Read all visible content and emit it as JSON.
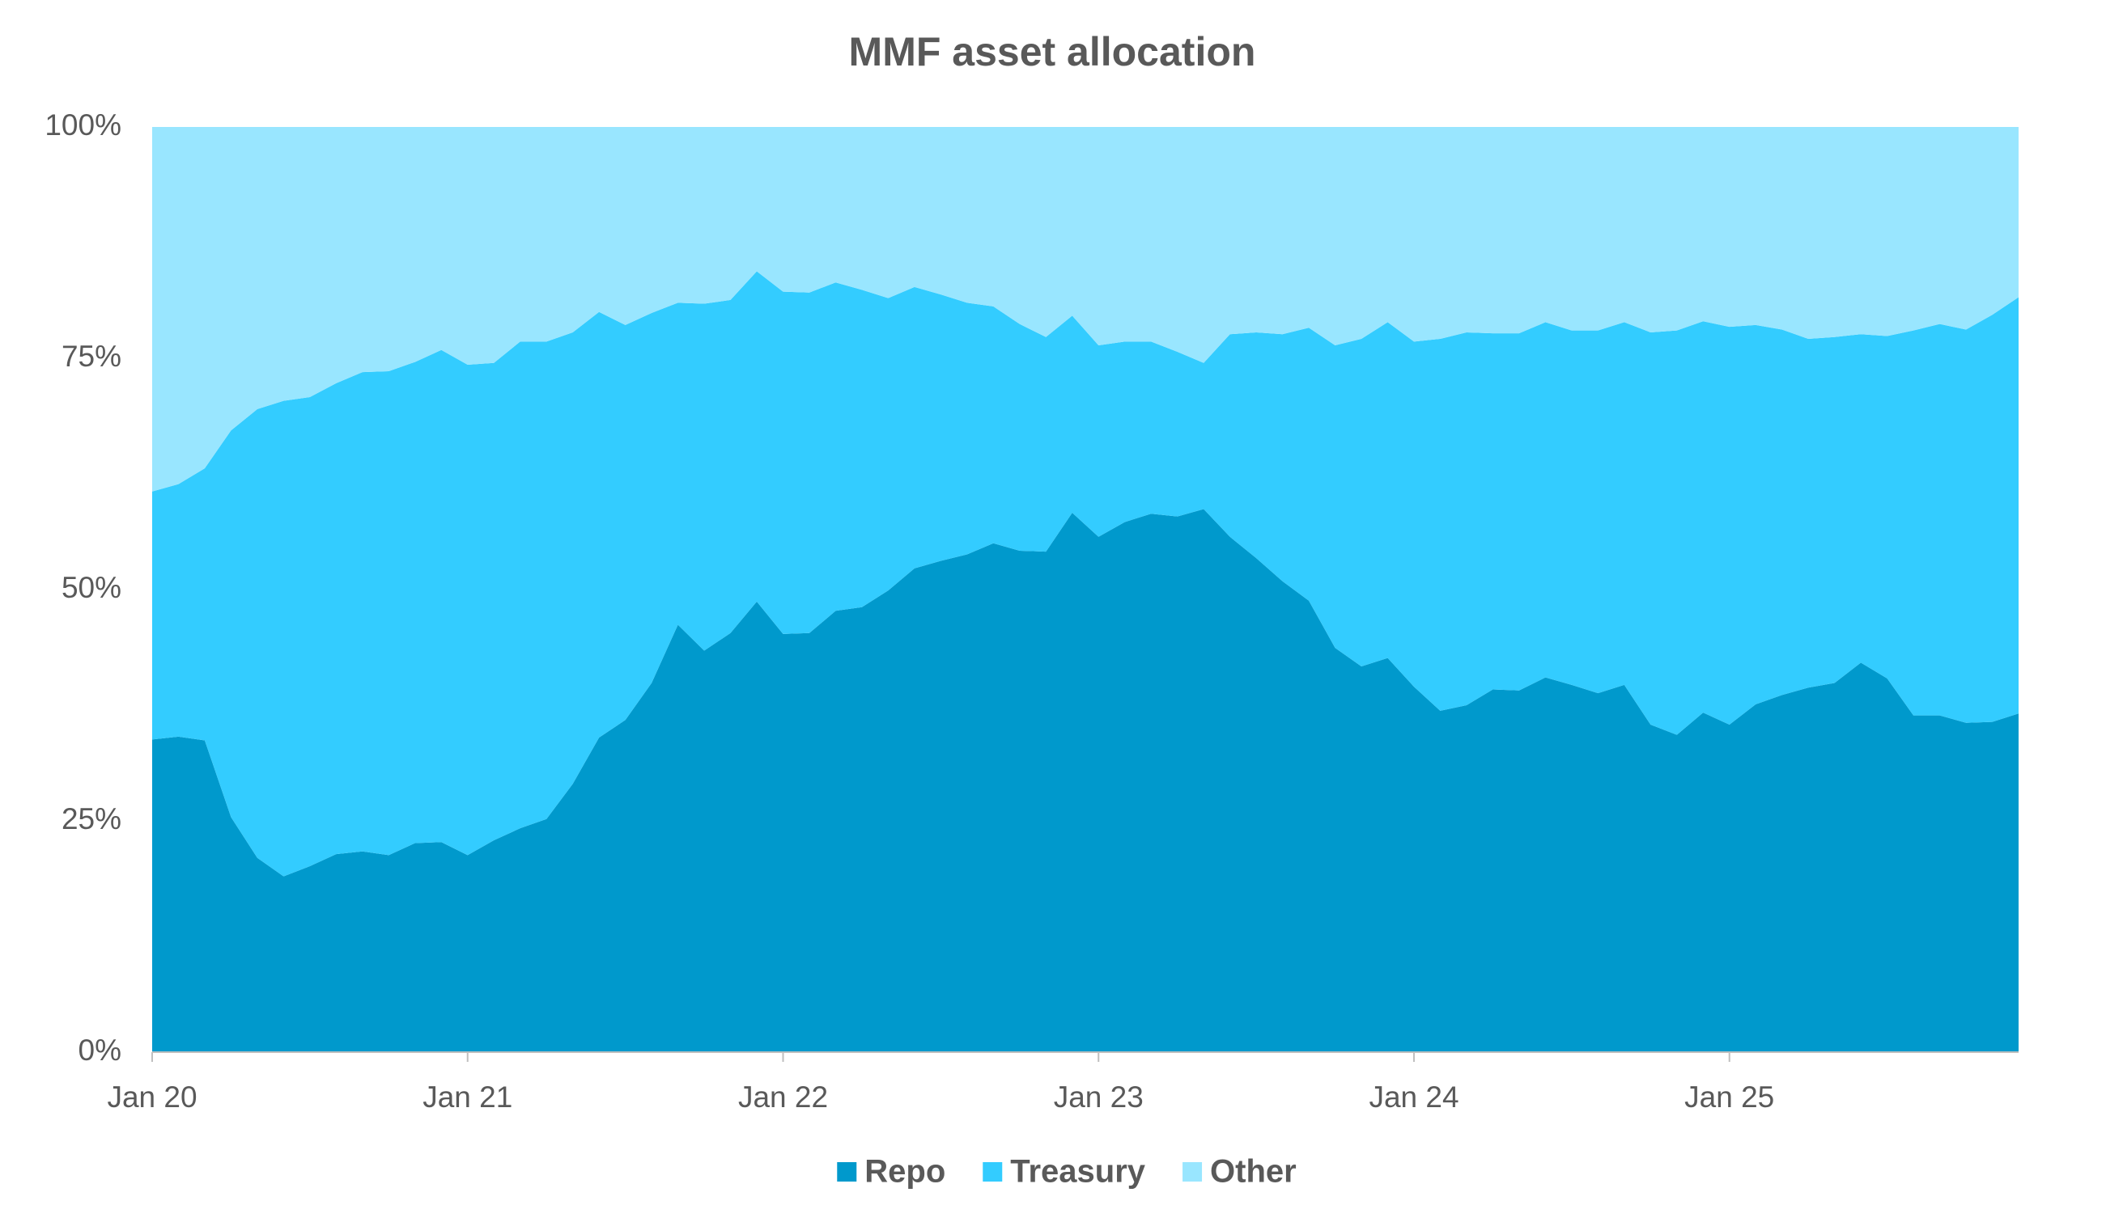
{
  "chart_data": {
    "type": "stacked_area",
    "title": "MMF asset allocation",
    "categories": [
      "Jan 20",
      null,
      null,
      null,
      null,
      null,
      null,
      null,
      null,
      null,
      null,
      null,
      "Jan 21",
      null,
      null,
      null,
      null,
      null,
      null,
      null,
      null,
      null,
      null,
      null,
      "Jan 22",
      null,
      null,
      null,
      null,
      null,
      null,
      null,
      null,
      null,
      null,
      null,
      "Jan 23",
      null,
      null,
      null,
      null,
      null,
      null,
      null,
      null,
      null,
      null,
      null,
      "Jan 24",
      null,
      null,
      null,
      null,
      null,
      null,
      null,
      null,
      null,
      null,
      null,
      "Jan 25",
      null,
      null,
      null,
      null,
      null,
      null,
      null,
      null,
      null,
      null,
      null
    ],
    "series": [
      {
        "name": "Repo",
        "color": "#0099cc",
        "values": [
          33.8,
          34.1,
          33.7,
          25.4,
          21.0,
          19.0,
          20.1,
          21.4,
          21.7,
          21.3,
          22.6,
          22.7,
          21.3,
          22.9,
          24.2,
          25.2,
          29.0,
          34.0,
          35.9,
          39.9,
          46.2,
          43.4,
          45.3,
          48.7,
          45.2,
          45.3,
          47.7,
          48.1,
          49.9,
          52.3,
          53.1,
          53.8,
          55.0,
          54.2,
          54.1,
          58.3,
          55.7,
          57.3,
          58.2,
          57.9,
          58.7,
          55.7,
          53.4,
          50.9,
          48.8,
          43.7,
          41.7,
          42.6,
          39.5,
          36.9,
          37.5,
          39.2,
          39.1,
          40.5,
          39.7,
          38.8,
          39.7,
          35.4,
          34.3,
          36.7,
          35.4,
          37.6,
          38.6,
          39.4,
          39.9,
          42.1,
          40.4,
          36.4,
          36.4,
          35.6,
          35.7,
          36.6
        ]
      },
      {
        "name": "Treasury",
        "color": "#33ccff",
        "values": [
          26.8,
          27.3,
          29.4,
          41.8,
          48.5,
          51.4,
          50.7,
          50.9,
          51.8,
          52.3,
          52.0,
          53.2,
          53.0,
          51.6,
          52.6,
          51.6,
          48.8,
          46.0,
          42.7,
          40.0,
          34.8,
          37.5,
          36.0,
          35.7,
          37.0,
          36.8,
          35.5,
          34.3,
          31.6,
          30.4,
          28.8,
          27.2,
          25.6,
          24.5,
          23.2,
          21.3,
          20.7,
          19.5,
          18.6,
          17.8,
          15.8,
          21.9,
          24.4,
          26.7,
          29.5,
          32.7,
          35.4,
          36.3,
          37.3,
          40.2,
          40.3,
          38.5,
          38.6,
          38.4,
          38.3,
          39.2,
          39.2,
          42.4,
          43.7,
          42.3,
          43.0,
          41.0,
          39.5,
          37.7,
          37.4,
          35.5,
          37.0,
          41.6,
          42.3,
          42.5,
          44.0,
          45.0
        ]
      },
      {
        "name": "Other",
        "color": "#99e6ff",
        "values": [
          39.4,
          38.6,
          36.9,
          32.8,
          30.5,
          29.6,
          29.2,
          27.7,
          26.5,
          26.4,
          25.4,
          24.1,
          25.7,
          25.5,
          23.2,
          23.2,
          22.2,
          20.0,
          21.4,
          20.1,
          19.0,
          19.1,
          18.7,
          15.6,
          17.8,
          17.9,
          16.8,
          17.6,
          18.5,
          17.3,
          18.1,
          19.0,
          19.4,
          21.3,
          22.7,
          20.4,
          23.6,
          23.2,
          23.2,
          24.3,
          25.5,
          22.4,
          22.2,
          22.4,
          21.7,
          23.6,
          22.9,
          21.1,
          23.2,
          22.9,
          22.2,
          22.3,
          22.3,
          21.1,
          22.0,
          22.0,
          21.1,
          22.2,
          22.0,
          21.0,
          21.6,
          21.4,
          21.9,
          22.9,
          22.7,
          22.4,
          22.6,
          22.0,
          21.3,
          21.9,
          20.3,
          18.4
        ]
      }
    ],
    "ylim": [
      0,
      100
    ],
    "yticks": [
      {
        "value": 0,
        "label": "0%"
      },
      {
        "value": 25,
        "label": "25%"
      },
      {
        "value": 50,
        "label": "50%"
      },
      {
        "value": 75,
        "label": "75%"
      },
      {
        "value": 100,
        "label": "100%"
      }
    ],
    "grid": false,
    "legend": "bottom"
  }
}
